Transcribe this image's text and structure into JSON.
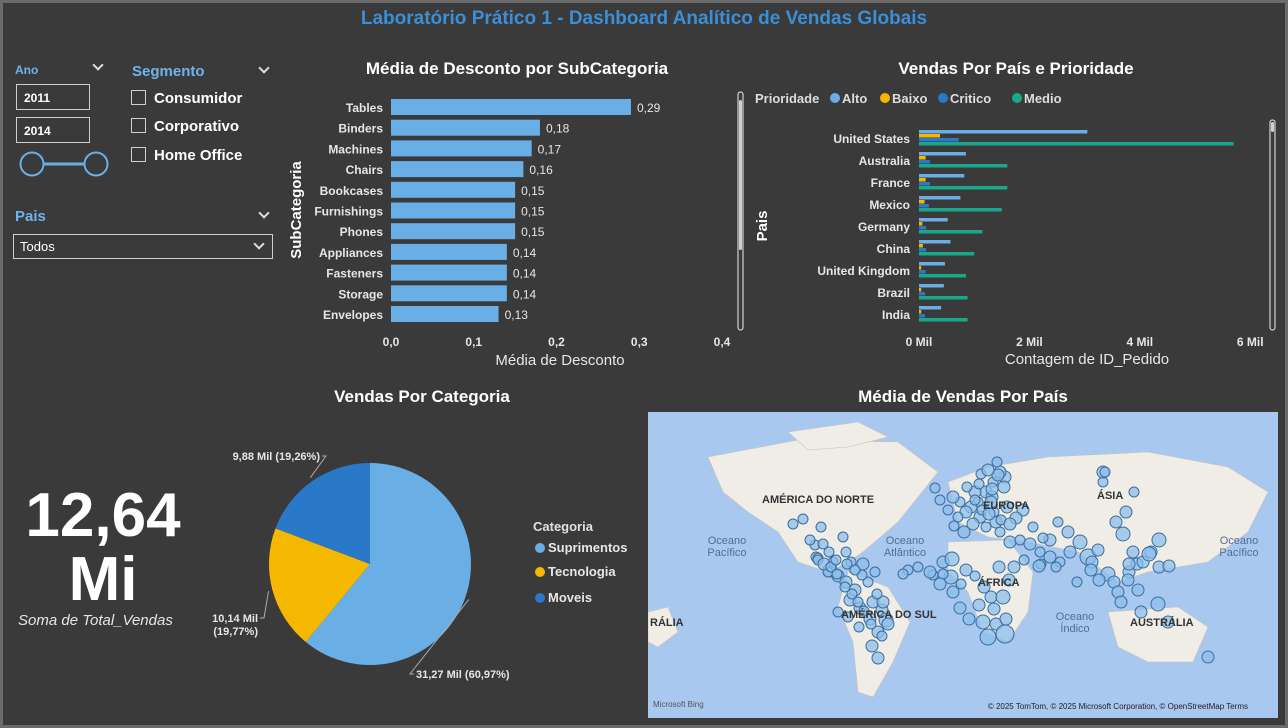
{
  "title": "Laboratório Prático 1 - Dashboard Analítico de Vendas Globais",
  "filters": {
    "year": {
      "label": "Ano",
      "from": "2011",
      "to": "2014"
    },
    "segment": {
      "label": "Segmento",
      "options": [
        "Consumidor",
        "Corporativo",
        "Home Office"
      ]
    },
    "country": {
      "label": "Pais",
      "selected": "Todos"
    }
  },
  "colors": {
    "alto": "#6aaee6",
    "baixo": "#f5b800",
    "critico": "#2a78c8",
    "medio": "#1aa88c",
    "bar": "#6aaee6"
  },
  "discount_chart": {
    "chart_data": {
      "type": "bar",
      "title": "Média de Desconto por SubCategoria",
      "xlabel": "Média de Desconto",
      "ylabel": "SubCategoria",
      "categories": [
        "Tables",
        "Binders",
        "Machines",
        "Chairs",
        "Bookcases",
        "Furnishings",
        "Phones",
        "Appliances",
        "Fasteners",
        "Storage",
        "Envelopes"
      ],
      "values": [
        0.29,
        0.18,
        0.17,
        0.16,
        0.15,
        0.15,
        0.15,
        0.14,
        0.14,
        0.14,
        0.13
      ],
      "value_labels": [
        "0,29",
        "0,18",
        "0,17",
        "0,16",
        "0,15",
        "0,15",
        "0,15",
        "0,14",
        "0,14",
        "0,14",
        "0,13"
      ],
      "ticks": [
        "0,0",
        "0,1",
        "0,2",
        "0,3",
        "0,4"
      ],
      "xlim": [
        0,
        0.4
      ]
    }
  },
  "country_chart": {
    "chart_data": {
      "type": "bar",
      "title": "Vendas Por País e Prioridade",
      "xlabel": "Contagem de ID_Pedido",
      "ylabel": "Pais",
      "legend_title": "Prioridade",
      "categories": [
        "United States",
        "Australia",
        "France",
        "Mexico",
        "Germany",
        "China",
        "United Kingdom",
        "Brazil",
        "India"
      ],
      "series": [
        {
          "name": "Alto",
          "values": [
            3.05,
            0.85,
            0.82,
            0.75,
            0.52,
            0.57,
            0.47,
            0.45,
            0.4
          ]
        },
        {
          "name": "Baixo",
          "values": [
            0.38,
            0.12,
            0.12,
            0.1,
            0.06,
            0.07,
            0.04,
            0.04,
            0.04
          ]
        },
        {
          "name": "Critico",
          "values": [
            0.72,
            0.2,
            0.2,
            0.18,
            0.13,
            0.13,
            0.12,
            0.11,
            0.11
          ]
        },
        {
          "name": "Medio",
          "values": [
            5.7,
            1.6,
            1.6,
            1.5,
            1.15,
            1.0,
            0.85,
            0.88,
            0.88
          ]
        }
      ],
      "ticks": [
        "0 Mil",
        "2 Mil",
        "4 Mil",
        "6 Mil"
      ],
      "xlim": [
        0,
        6.25
      ]
    }
  },
  "category_chart": {
    "chart_data": {
      "type": "pie",
      "title": "Vendas Por Categoria",
      "legend_title": "Categoria",
      "categories": [
        "Suprimentos",
        "Tecnologia",
        "Moveis"
      ],
      "values": [
        31.27,
        10.14,
        9.88
      ],
      "labels": [
        "31,27 Mil (60,97%)",
        "10,14 Mil (19,77%)",
        "9,88 Mil (19,26%)"
      ],
      "colors": [
        "#6aaee6",
        "#f5b800",
        "#2a78c8"
      ]
    }
  },
  "kpi": {
    "value_line1": "12,64",
    "value_line2": "Mi",
    "label": "Soma de Total_Vendas"
  },
  "map": {
    "title": "Média de Vendas Por País",
    "continents": [
      "AMÉRICA DO NORTE",
      "EUROPA",
      "ÁSIA",
      "ÁFRICA",
      "AMÉRICA DO SUL",
      "AUSTRÁLIA",
      "RÁLIA"
    ],
    "oceans": [
      "Oceano Pacífico",
      "Oceano Atlântico",
      "Oceano Índico",
      "Oceano Pacífico"
    ],
    "copyright": "© 2025 TomTom, © 2025 Microsoft Corporation, © OpenStreetMap  Terms",
    "provider": "Microsoft Bing"
  }
}
